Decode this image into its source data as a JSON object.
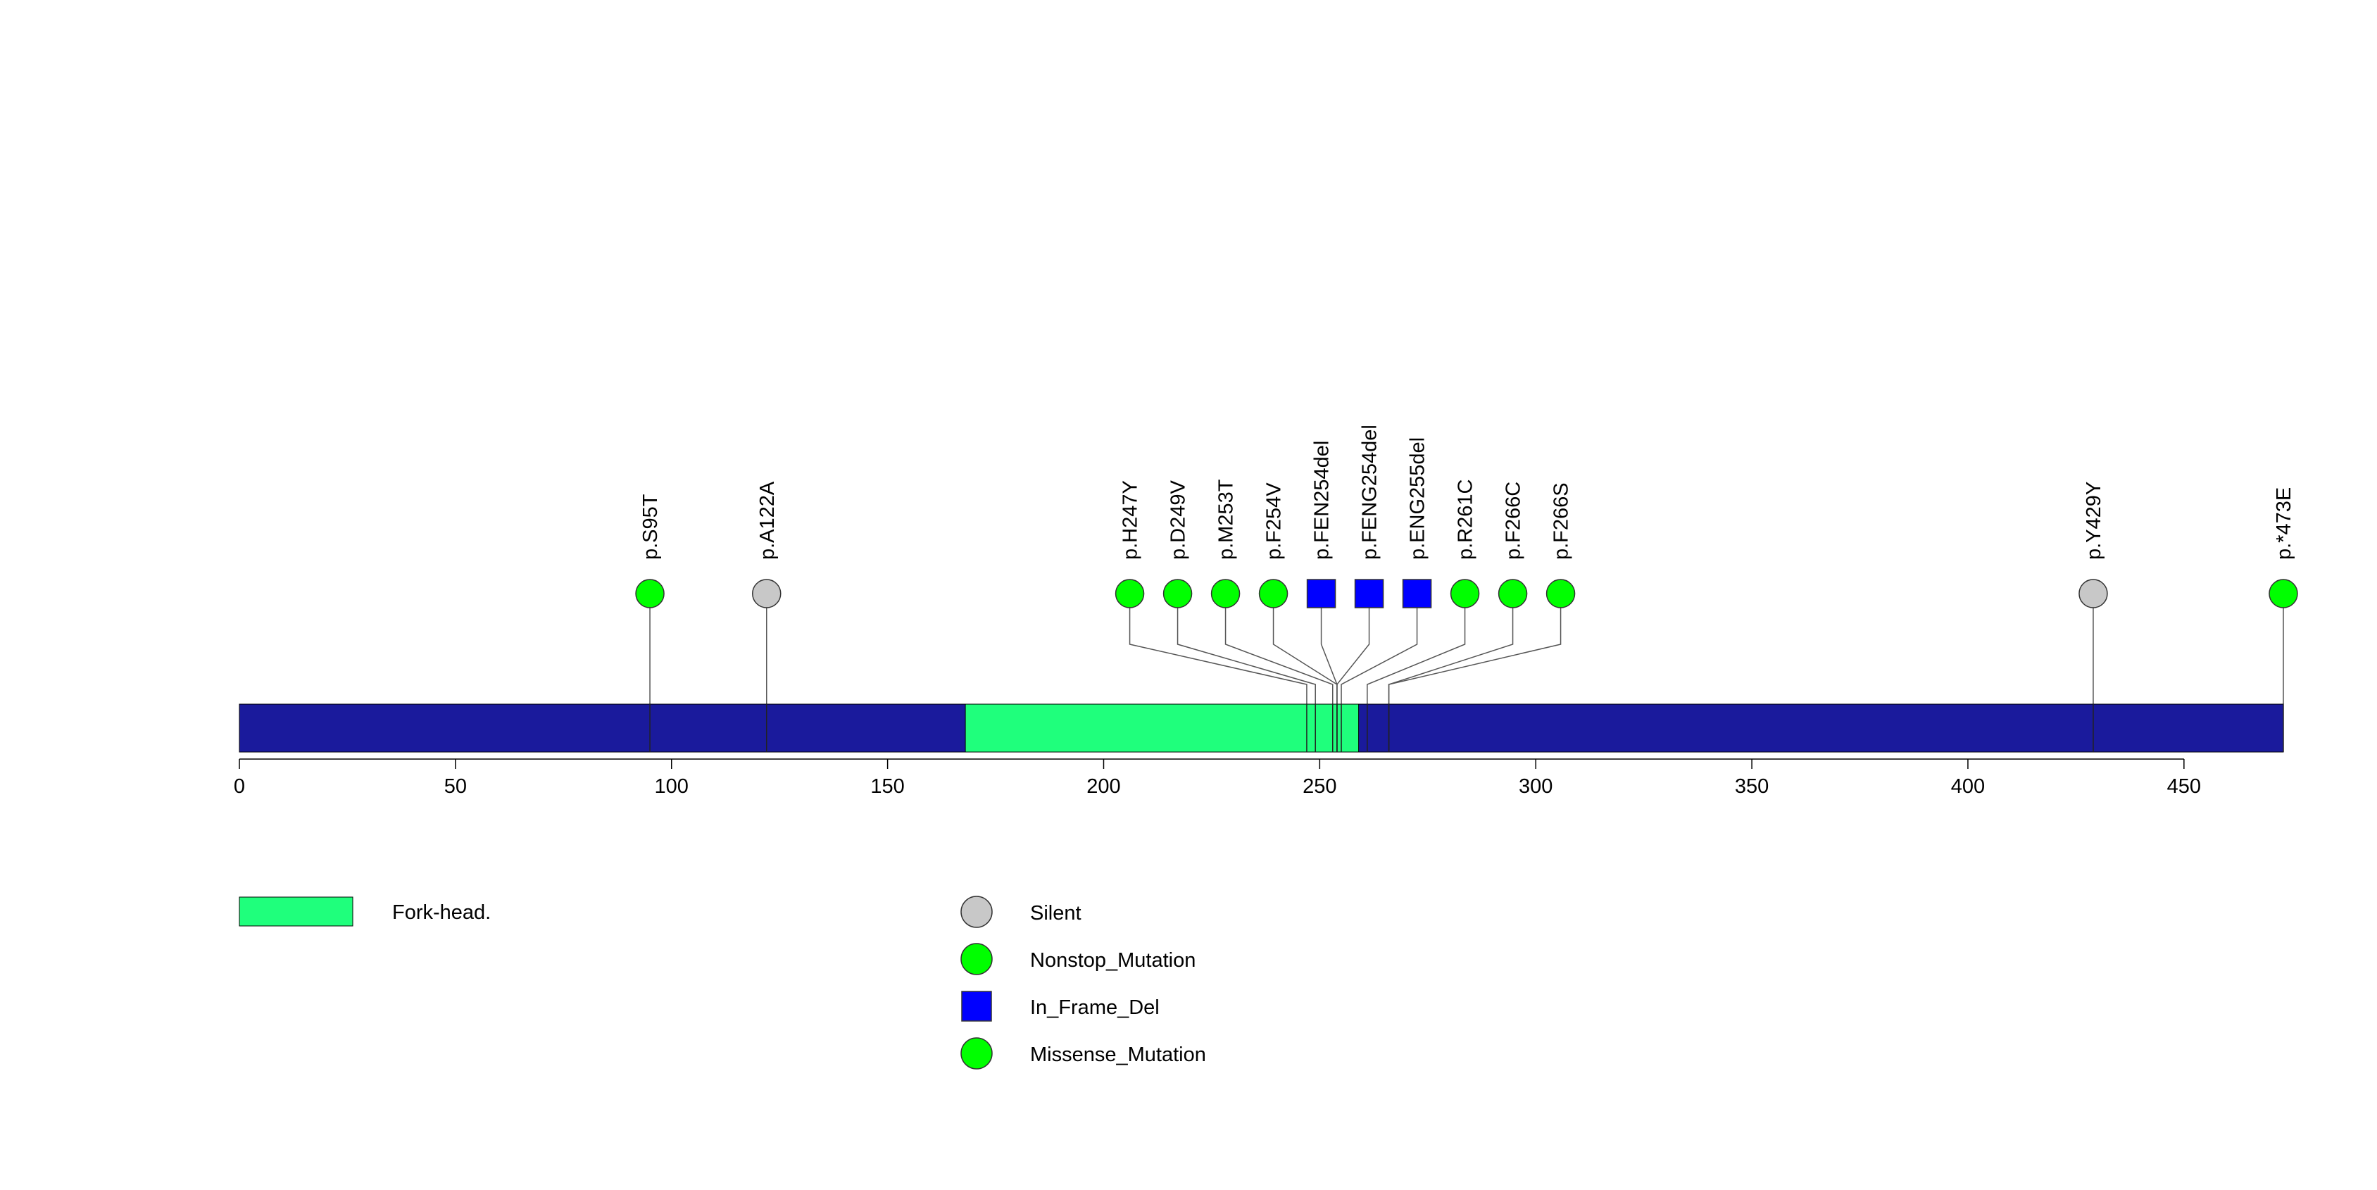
{
  "chart_data": {
    "type": "lollipop",
    "protein_length": 473,
    "xlim": [
      0,
      473
    ],
    "x_ticks": [
      0,
      50,
      100,
      150,
      200,
      250,
      300,
      350,
      400,
      450
    ],
    "backbone_color": "#1a1a9c",
    "domains": [
      {
        "name": "Fork-head.",
        "start": 168,
        "end": 259,
        "color": "#1fff7c"
      }
    ],
    "mutation_types": [
      {
        "name": "Silent",
        "shape": "circle",
        "color": "#c8c8c8"
      },
      {
        "name": "Nonstop_Mutation",
        "shape": "circle",
        "color": "#00ff00"
      },
      {
        "name": "In_Frame_Del",
        "shape": "square",
        "color": "#0000ff"
      },
      {
        "name": "Missense_Mutation",
        "shape": "circle",
        "color": "#00ff00"
      }
    ],
    "mutations": [
      {
        "label": "p.S95T",
        "position": 95,
        "type": "Missense_Mutation"
      },
      {
        "label": "p.A122A",
        "position": 122,
        "type": "Silent"
      },
      {
        "label": "p.H247Y",
        "position": 247,
        "type": "Missense_Mutation"
      },
      {
        "label": "p.D249V",
        "position": 249,
        "type": "Missense_Mutation"
      },
      {
        "label": "p.M253T",
        "position": 253,
        "type": "Missense_Mutation"
      },
      {
        "label": "p.F254V",
        "position": 254,
        "type": "Missense_Mutation"
      },
      {
        "label": "p.FEN254del",
        "position": 254,
        "type": "In_Frame_Del"
      },
      {
        "label": "p.FENG254del",
        "position": 254,
        "type": "In_Frame_Del"
      },
      {
        "label": "p.ENG255del",
        "position": 255,
        "type": "In_Frame_Del"
      },
      {
        "label": "p.R261C",
        "position": 261,
        "type": "Missense_Mutation"
      },
      {
        "label": "p.F266C",
        "position": 266,
        "type": "Missense_Mutation"
      },
      {
        "label": "p.F266S",
        "position": 266,
        "type": "Missense_Mutation"
      },
      {
        "label": "p.Y429Y",
        "position": 429,
        "type": "Silent"
      },
      {
        "label": "p.*473E",
        "position": 473,
        "type": "Nonstop_Mutation"
      }
    ]
  }
}
